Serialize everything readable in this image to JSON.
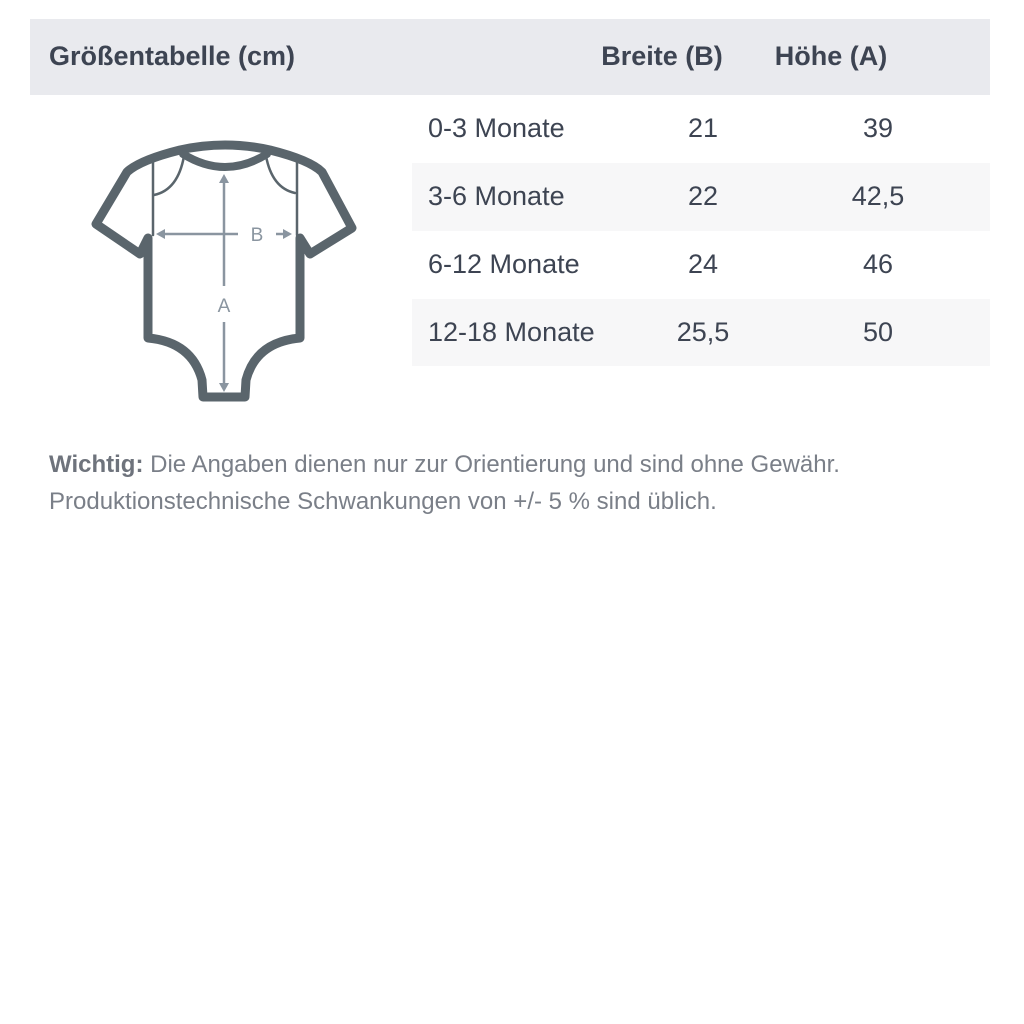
{
  "header": {
    "title": "Größentabelle (cm)",
    "col_width": "Breite (B)",
    "col_height": "Höhe (A)"
  },
  "rows": [
    {
      "size": "0-3 Monate",
      "width": "21",
      "height": "39"
    },
    {
      "size": "3-6 Monate",
      "width": "22",
      "height": "42,5"
    },
    {
      "size": "6-12 Monate",
      "width": "24",
      "height": "46"
    },
    {
      "size": "12-18 Monate",
      "width": "25,5",
      "height": "50"
    }
  ],
  "diagram": {
    "label_b": "B",
    "label_a": "A",
    "outline_color": "#5a656c",
    "arrow_color": "#8a95a0"
  },
  "note": {
    "label": "Wichtig:",
    "line1": "Die Angaben dienen nur zur Orientierung und sind ohne Gewähr.",
    "line2": "Produktionstechnische Schwankungen von +/- 5 % sind üblich."
  }
}
